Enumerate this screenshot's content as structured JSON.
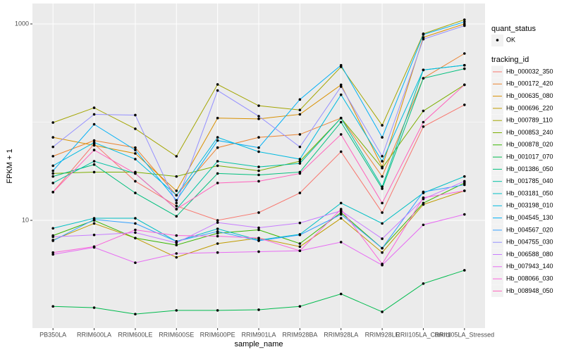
{
  "chart_data": {
    "type": "line",
    "log_y": true,
    "grid": true,
    "x_label": "sample_name",
    "y_label": "FPKM + 1",
    "point_legend": {
      "title": "quant_status",
      "labels": [
        "OK"
      ]
    },
    "legend_title": "tracking_id",
    "categories": [
      "PB350LA",
      "RRIM600LA",
      "RRIM600LE",
      "RRIM600SE",
      "RRIM600PE",
      "RRIM901LA",
      "RRIM928BA",
      "RRIM928LA",
      "RRIM928LE",
      "RRII105LA_Control",
      "RRII105LA_Stressed"
    ],
    "ylim": [
      0.8,
      1614
    ],
    "yticks": [
      10,
      1000
    ],
    "series": [
      {
        "name": "Hb_000032_350",
        "color": "#F8766D",
        "values": [
          19.4,
          60,
          25,
          14,
          10,
          12,
          19,
          50,
          12,
          90,
          150
        ]
      },
      {
        "name": "Hb_000172_420",
        "color": "#EA8331",
        "values": [
          45,
          65,
          55,
          18,
          55,
          70,
          75,
          110,
          28,
          280,
          500
        ]
      },
      {
        "name": "Hb_000635_080",
        "color": "#D89000",
        "values": [
          70,
          58,
          48,
          20,
          110,
          108,
          120,
          240,
          35,
          730,
          1000
        ]
      },
      {
        "name": "Hb_000696_220",
        "color": "#C09B00",
        "values": [
          6.3,
          9.3,
          6.6,
          4.2,
          5.8,
          6.6,
          5.4,
          10.5,
          4.7,
          14.5,
          20
        ]
      },
      {
        "name": "Hb_000789_110",
        "color": "#A3A500",
        "values": [
          99,
          140,
          85.5,
          44.9,
          242,
          147,
          133,
          366,
          92.9,
          794,
          1104
        ]
      },
      {
        "name": "Hb_000853_240",
        "color": "#7CAE00",
        "values": [
          30,
          31,
          31,
          28,
          36,
          32,
          40,
          110,
          34,
          130,
          240
        ]
      },
      {
        "name": "Hb_000878_020",
        "color": "#39B600",
        "values": [
          7,
          10,
          6.6,
          5.6,
          7.4,
          8,
          5.8,
          12,
          5.2,
          15,
          24
        ]
      },
      {
        "name": "Hb_001017_070",
        "color": "#00BB4E",
        "values": [
          1.33,
          1.29,
          1.11,
          1.21,
          1.21,
          1.23,
          1.33,
          1.78,
          1.17,
          2.27,
          3.1
        ]
      },
      {
        "name": "Hb_001386_050",
        "color": "#00BF7D",
        "values": [
          28,
          37,
          19,
          11,
          30,
          29,
          31,
          100,
          21,
          280,
          350
        ]
      },
      {
        "name": "Hb_001785_040",
        "color": "#00C1A3",
        "values": [
          24,
          40,
          30,
          13,
          40,
          35,
          38,
          110,
          22,
          340,
          380
        ]
      },
      {
        "name": "Hb_003181_050",
        "color": "#00BFC4",
        "values": [
          8.3,
          10.5,
          10.5,
          6.1,
          8.2,
          6.3,
          7.2,
          15,
          9.3,
          19,
          28
        ]
      },
      {
        "name": "Hb_003198_010",
        "color": "#00BAE0",
        "values": [
          36,
          62,
          42,
          18,
          70,
          50,
          42,
          190,
          40,
          340,
          380
        ]
      },
      {
        "name": "Hb_004545_130",
        "color": "#00B0F6",
        "values": [
          32,
          95,
          52,
          16,
          65,
          55,
          170,
          380,
          70,
          780,
          1050
        ]
      },
      {
        "name": "Hb_004567_020",
        "color": "#35A2FF",
        "values": [
          6.2,
          10.2,
          9.3,
          6.1,
          7.7,
          6.2,
          7.1,
          11.5,
          5.2,
          19.5,
          23
        ]
      },
      {
        "name": "Hb_004755_030",
        "color": "#9590FF",
        "values": [
          56,
          120,
          118,
          15,
          210,
          115,
          56,
          230,
          45,
          700,
          960
        ]
      },
      {
        "name": "Hb_006588_080",
        "color": "#C77CFF",
        "values": [
          6.8,
          7.1,
          7.5,
          5.9,
          9.5,
          8.4,
          9.4,
          12.5,
          6.5,
          16.5,
          25
        ]
      },
      {
        "name": "Hb_007943_140",
        "color": "#E76BF3",
        "values": [
          4.5,
          5.3,
          3.7,
          4.6,
          4.7,
          4.8,
          4.9,
          6,
          3.5,
          9,
          11.5
        ]
      },
      {
        "name": "Hb_008066_030",
        "color": "#FA62DB",
        "values": [
          4.7,
          5.4,
          8,
          7,
          6.9,
          6.6,
          4.9,
          13,
          3.6,
          17,
          20
        ]
      },
      {
        "name": "Hb_008948_050",
        "color": "#FF62BC",
        "values": [
          19.4,
          52,
          30,
          13,
          24,
          25,
          30,
          75,
          15,
          100,
          240
        ]
      }
    ]
  }
}
